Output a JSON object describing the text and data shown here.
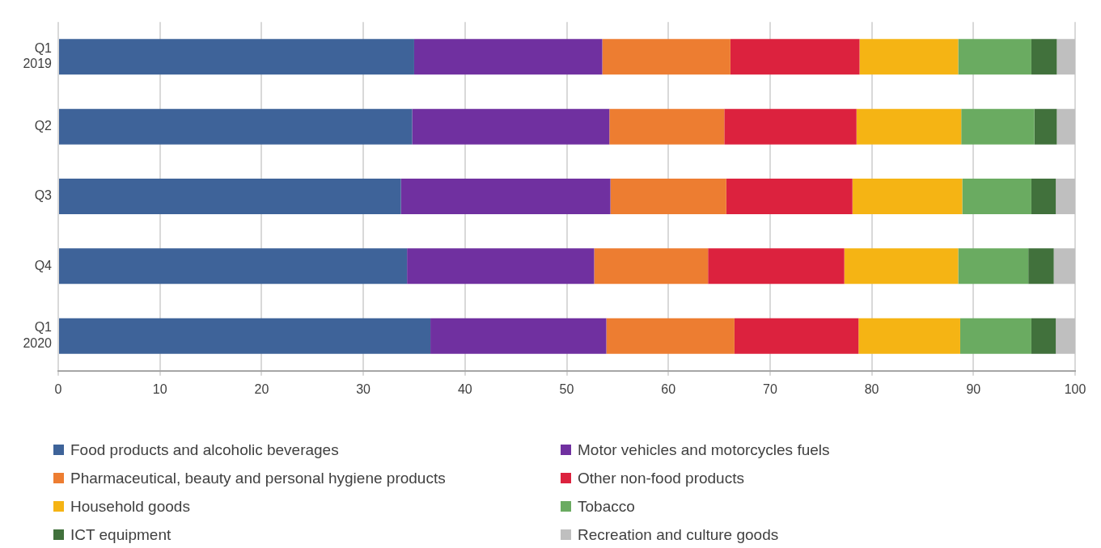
{
  "chart_data": {
    "type": "bar",
    "orientation": "horizontal",
    "stacked": true,
    "categories": [
      "Q1\n2019",
      "Q2",
      "Q3",
      "Q4",
      "Q1\n2020"
    ],
    "xlim": [
      0,
      100
    ],
    "xticks": [
      0,
      10,
      20,
      30,
      40,
      50,
      60,
      70,
      80,
      90,
      100
    ],
    "grid": "x",
    "legend": "bottom",
    "series": [
      {
        "name": "Food products and alcoholic beverages",
        "color": "#3e6399",
        "values": [
          35.0,
          34.8,
          33.7,
          34.3,
          36.6
        ]
      },
      {
        "name": "Motor vehicles and motorcycles fuels",
        "color": "#7030a0",
        "values": [
          18.5,
          19.4,
          20.6,
          18.4,
          17.3
        ]
      },
      {
        "name": "Pharmaceutical, beauty and personal hygiene products",
        "color": "#ed7d31",
        "values": [
          12.6,
          11.3,
          11.4,
          11.2,
          12.6
        ]
      },
      {
        "name": "Other non-food products",
        "color": "#dc223e",
        "values": [
          12.7,
          13.0,
          12.4,
          13.4,
          12.2
        ]
      },
      {
        "name": "Household goods",
        "color": "#f5b414",
        "values": [
          9.7,
          10.3,
          10.8,
          11.2,
          10.0
        ]
      },
      {
        "name": "Tobacco",
        "color": "#6aab61",
        "values": [
          7.2,
          7.2,
          6.8,
          6.9,
          7.0
        ]
      },
      {
        "name": "ICT equipment",
        "color": "#41713c",
        "values": [
          2.5,
          2.2,
          2.4,
          2.5,
          2.4
        ]
      },
      {
        "name": "Recreation and culture goods",
        "color": "#bfbfbf",
        "values": [
          1.8,
          1.8,
          1.9,
          2.1,
          1.9
        ]
      }
    ]
  }
}
